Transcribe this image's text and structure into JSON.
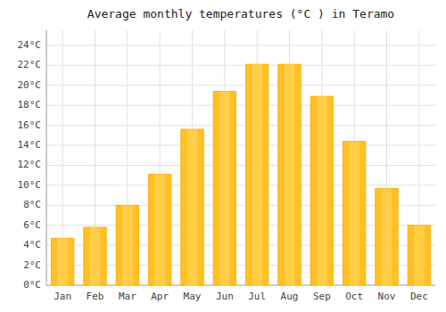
{
  "chart_data": {
    "type": "bar",
    "title": "Average monthly temperatures (°C ) in Teramo",
    "categories": [
      "Jan",
      "Feb",
      "Mar",
      "Apr",
      "May",
      "Jun",
      "Jul",
      "Aug",
      "Sep",
      "Oct",
      "Nov",
      "Dec"
    ],
    "values": [
      4.7,
      5.8,
      8.0,
      11.1,
      15.6,
      19.4,
      22.1,
      22.1,
      18.9,
      14.4,
      9.7,
      6.0
    ],
    "color": "#FFC125",
    "ylim": [
      0,
      25.5
    ],
    "yticks": [
      {
        "value": 0,
        "label": "0°C"
      },
      {
        "value": 2,
        "label": "2°C"
      },
      {
        "value": 4,
        "label": "4°C"
      },
      {
        "value": 6,
        "label": "6°C"
      },
      {
        "value": 8,
        "label": "8°C"
      },
      {
        "value": 10,
        "label": "10°C"
      },
      {
        "value": 12,
        "label": "12°C"
      },
      {
        "value": 14,
        "label": "14°C"
      },
      {
        "value": 16,
        "label": "16°C"
      },
      {
        "value": 18,
        "label": "18°C"
      },
      {
        "value": 20,
        "label": "20°C"
      },
      {
        "value": 22,
        "label": "22°C"
      },
      {
        "value": 24,
        "label": "24°C"
      }
    ],
    "grid": true
  }
}
